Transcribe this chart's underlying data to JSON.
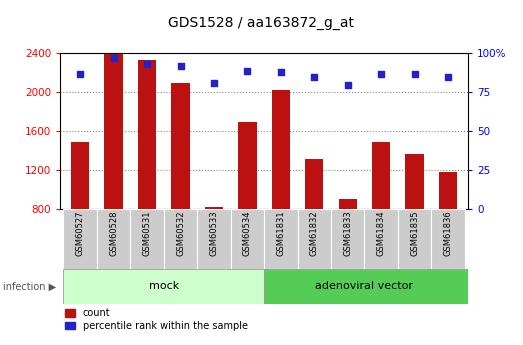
{
  "title": "GDS1528 / aa163872_g_at",
  "samples": [
    "GSM60527",
    "GSM60528",
    "GSM60531",
    "GSM60532",
    "GSM60533",
    "GSM60534",
    "GSM61831",
    "GSM61832",
    "GSM61833",
    "GSM61834",
    "GSM61835",
    "GSM61836"
  ],
  "counts": [
    1490,
    2390,
    2330,
    2100,
    820,
    1690,
    2020,
    1310,
    900,
    1490,
    1360,
    1180
  ],
  "percentile_ranks": [
    87,
    97,
    93,
    92,
    81,
    89,
    88,
    85,
    80,
    87,
    87,
    85
  ],
  "ylim_left": [
    800,
    2400
  ],
  "ylim_right": [
    0,
    100
  ],
  "yticks_left": [
    800,
    1200,
    1600,
    2000,
    2400
  ],
  "yticks_right": [
    0,
    25,
    50,
    75,
    100
  ],
  "bar_color": "#bb1111",
  "dot_color": "#2222cc",
  "mock_bg_light": "#ccffcc",
  "adeno_bg": "#55cc55",
  "sample_bg": "#cccccc",
  "title_fontsize": 10,
  "tick_fontsize": 7.5,
  "legend_fontsize": 7,
  "group_fontsize": 8
}
